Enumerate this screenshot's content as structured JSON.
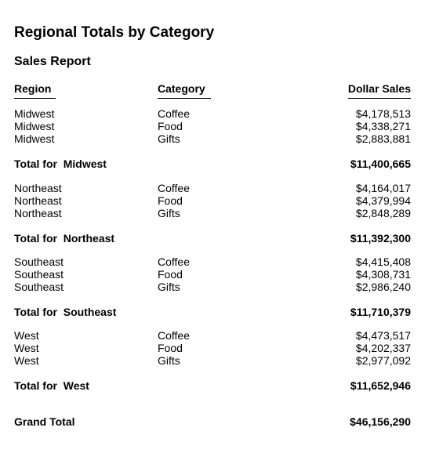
{
  "report": {
    "title": "Regional Totals by Category",
    "subtitle": "Sales Report",
    "columns": {
      "region": "Region",
      "category": "Category",
      "sales": "Dollar Sales"
    },
    "groups": [
      {
        "rows": [
          {
            "region": "Midwest",
            "category": "Coffee",
            "sales": "$4,178,513"
          },
          {
            "region": "Midwest",
            "category": "Food",
            "sales": "$4,338,271"
          },
          {
            "region": "Midwest",
            "category": "Gifts",
            "sales": "$2,883,881"
          }
        ],
        "total_label": "Total for  Midwest",
        "total_value": "$11,400,665"
      },
      {
        "rows": [
          {
            "region": "Northeast",
            "category": "Coffee",
            "sales": "$4,164,017"
          },
          {
            "region": "Northeast",
            "category": "Food",
            "sales": "$4,379,994"
          },
          {
            "region": "Northeast",
            "category": "Gifts",
            "sales": "$2,848,289"
          }
        ],
        "total_label": "Total for  Northeast",
        "total_value": "$11,392,300"
      },
      {
        "rows": [
          {
            "region": "Southeast",
            "category": "Coffee",
            "sales": "$4,415,408"
          },
          {
            "region": "Southeast",
            "category": "Food",
            "sales": "$4,308,731"
          },
          {
            "region": "Southeast",
            "category": "Gifts",
            "sales": "$2,986,240"
          }
        ],
        "total_label": "Total for  Southeast",
        "total_value": "$11,710,379"
      },
      {
        "rows": [
          {
            "region": "West",
            "category": "Coffee",
            "sales": "$4,473,517"
          },
          {
            "region": "West",
            "category": "Food",
            "sales": "$4,202,337"
          },
          {
            "region": "West",
            "category": "Gifts",
            "sales": "$2,977,092"
          }
        ],
        "total_label": "Total for  West",
        "total_value": "$11,652,946"
      }
    ],
    "grand_total_label": "Grand Total",
    "grand_total_value": "$46,156,290"
  }
}
